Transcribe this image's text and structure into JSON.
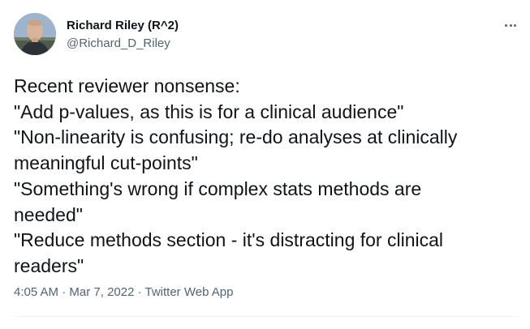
{
  "author": {
    "display_name": "Richard Riley (R^2)",
    "handle": "@Richard_D_Riley",
    "avatar_icon": "profile-photo"
  },
  "more_icon": "more-options-icon",
  "tweet": {
    "lines": [
      "Recent reviewer nonsense:",
      "\"Add p-values, as this is for a clinical audience\"",
      "\"Non-linearity is confusing; re-do analyses at clinically",
      "meaningful cut-points\"",
      "\"Something's wrong if complex stats methods are",
      "needed\"",
      "\"Reduce methods section - it's distracting for clinical",
      "readers\""
    ]
  },
  "meta": {
    "time": "4:05 AM",
    "separator": " · ",
    "date": "Mar 7, 2022",
    "source": "Twitter Web App"
  },
  "colors": {
    "text_primary": "#0f1419",
    "text_secondary": "#536471",
    "divider": "#eff3f4"
  }
}
